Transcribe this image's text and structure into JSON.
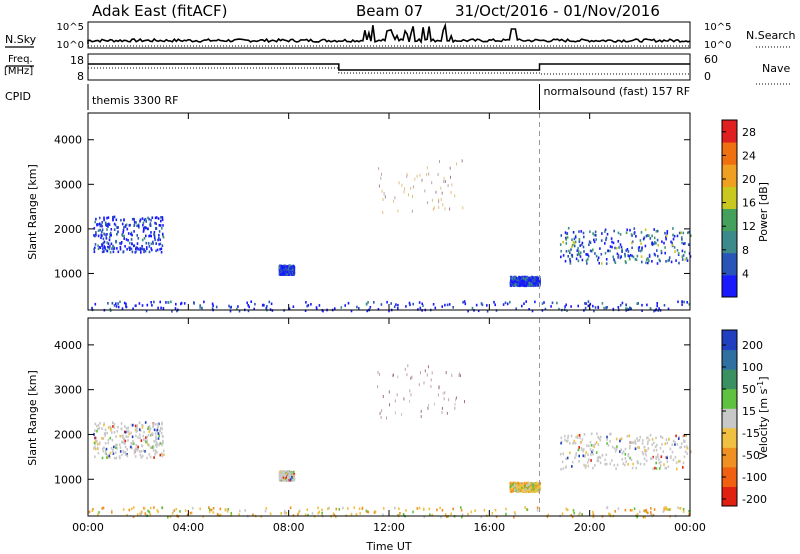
{
  "header": {
    "radar": "Adak East (fitACF)",
    "beam": "Beam 07",
    "dates": "31/Oct/2016 - 01/Nov/2016"
  },
  "top_panels": {
    "nsky_label": "N.Sky",
    "nsearch_label": "N.Search",
    "nsky_ticks": [
      "10^5",
      "10^0"
    ],
    "nsearch_ticks": [
      "10^5",
      "10^0"
    ],
    "freq_label_line1": "Freq.",
    "freq_label_line2": "[MHz]",
    "freq_ticks": [
      "18",
      "8"
    ],
    "nave_label": "Nave",
    "nave_ticks": [
      "60",
      "0"
    ],
    "cpid_label": "CPID",
    "cpid_segments": [
      {
        "text": "themis 3300 RF",
        "start_hour": 0,
        "end_hour": 18
      },
      {
        "text": "normalsound (fast) 157 RF",
        "start_hour": 18,
        "end_hour": 24
      }
    ]
  },
  "chart_data": [
    {
      "type": "heatmap",
      "panel": "power",
      "ylabel": "Slant Range [km]",
      "xlabel": "",
      "x_ticks": [
        "00:00",
        "04:00",
        "08:00",
        "12:00",
        "16:00",
        "20:00",
        "00:00"
      ],
      "x_range_hours": [
        0,
        24
      ],
      "y_ticks": [
        1000,
        2000,
        3000,
        4000
      ],
      "y_range_km": [
        180,
        4600
      ],
      "colorbar_label": "Power [dB]",
      "colorbar_ticks": [
        4,
        8,
        12,
        16,
        20,
        24,
        28
      ],
      "colorbar_range": [
        0,
        30
      ],
      "colorbar_colors": [
        "#1a1aff",
        "#2a55b8",
        "#3c8a8a",
        "#44a05a",
        "#c8c820",
        "#f0a020",
        "#f07010",
        "#e02020"
      ],
      "marker_hour": 18,
      "echo_regions": [
        {
          "t0": 0.2,
          "t1": 3.0,
          "r0": 1500,
          "r1": 2300,
          "dominant": "blue"
        },
        {
          "t0": 7.6,
          "t1": 8.2,
          "r0": 1000,
          "r1": 1200,
          "dominant": "blue"
        },
        {
          "t0": 16.8,
          "t1": 18.0,
          "r0": 750,
          "r1": 950,
          "dominant": "blue"
        },
        {
          "t0": 18.8,
          "t1": 24.0,
          "r0": 1250,
          "r1": 2050,
          "dominant": "blue-green"
        },
        {
          "t0": 0.0,
          "t1": 24.0,
          "r0": 180,
          "r1": 400,
          "dominant": "blue"
        }
      ]
    },
    {
      "type": "heatmap",
      "panel": "velocity",
      "ylabel": "Slant Range [km]",
      "xlabel": "Time UT",
      "x_ticks": [
        "00:00",
        "04:00",
        "08:00",
        "12:00",
        "16:00",
        "20:00",
        "00:00"
      ],
      "x_range_hours": [
        0,
        24
      ],
      "y_ticks": [
        1000,
        2000,
        3000,
        4000
      ],
      "y_range_km": [
        180,
        4600
      ],
      "colorbar_label": "Velocity [m s-1]",
      "colorbar_ticks": [
        200,
        100,
        50,
        15,
        -15,
        -50,
        -100,
        -200
      ],
      "colorbar_colors": [
        "#2040c0",
        "#3070a0",
        "#3a9060",
        "#60c040",
        "#c8c8c8",
        "#f0c040",
        "#f09020",
        "#f06010",
        "#e02010"
      ],
      "marker_hour": 18,
      "echo_regions": [
        {
          "t0": 0.2,
          "t1": 3.0,
          "r0": 1500,
          "r1": 2300,
          "dominant": "gray"
        },
        {
          "t0": 7.6,
          "t1": 8.2,
          "r0": 1000,
          "r1": 1200,
          "dominant": "gray"
        },
        {
          "t0": 16.8,
          "t1": 18.0,
          "r0": 750,
          "r1": 950,
          "dominant": "orange"
        },
        {
          "t0": 18.8,
          "t1": 24.0,
          "r0": 1250,
          "r1": 2050,
          "dominant": "gray"
        },
        {
          "t0": 0.0,
          "t1": 24.0,
          "r0": 180,
          "r1": 400,
          "dominant": "orange"
        }
      ]
    }
  ]
}
